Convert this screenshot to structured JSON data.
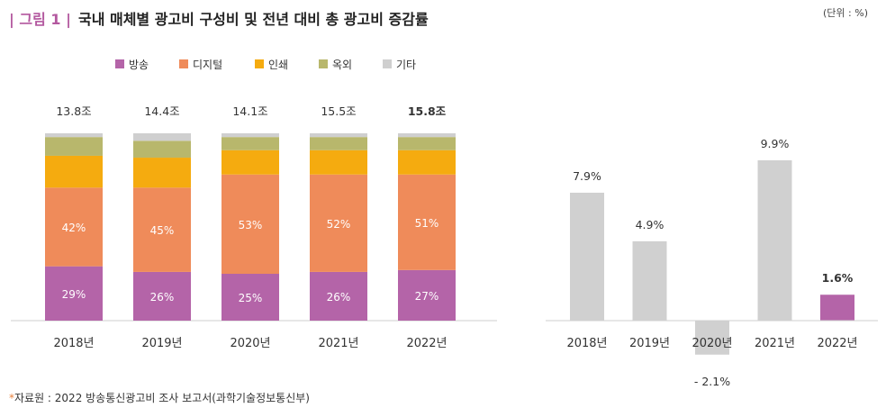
{
  "header": {
    "prefix": "| 그림 1 |",
    "title": "국내 매체별 광고비 구성비 및 전년 대비 총 광고비 증감률",
    "unit": "(단위 : %)"
  },
  "source": {
    "star": "*",
    "text": "자료원 : 2022 방송통신광고비 조사 보고서(과학기술정보통신부)"
  },
  "chart_data": [
    {
      "type": "bar",
      "stacked": true,
      "categories": [
        "2018년",
        "2019년",
        "2020년",
        "2021년",
        "2022년"
      ],
      "totals": [
        "13.8조",
        "14.4조",
        "14.1조",
        "15.5조",
        "15.8조"
      ],
      "highlight_total_index": 4,
      "series": [
        {
          "name": "방송",
          "color": "#b464a8",
          "values": [
            29,
            26,
            25,
            26,
            27
          ],
          "labels": [
            "29%",
            "26%",
            "25%",
            "26%",
            "27%"
          ]
        },
        {
          "name": "디지털",
          "color": "#ef8b5a",
          "values": [
            42,
            45,
            53,
            52,
            51
          ],
          "labels": [
            "42%",
            "45%",
            "53%",
            "52%",
            "51%"
          ]
        },
        {
          "name": "인쇄",
          "color": "#f5ab0f",
          "values": [
            17,
            16,
            13,
            13,
            13
          ]
        },
        {
          "name": "옥외",
          "color": "#b8b76c",
          "values": [
            10,
            9,
            7,
            7,
            7
          ]
        },
        {
          "name": "기타",
          "color": "#cfcfcf",
          "values": [
            2,
            4,
            2,
            2,
            2
          ]
        }
      ],
      "legend": "top-left",
      "ylim": [
        0,
        100
      ]
    },
    {
      "type": "bar",
      "categories": [
        "2018년",
        "2019년",
        "2020년",
        "2021년",
        "2022년"
      ],
      "values": [
        7.9,
        4.9,
        -2.1,
        9.9,
        1.6
      ],
      "labels": [
        "7.9%",
        "4.9%",
        "- 2.1%",
        "9.9%",
        "1.6%"
      ],
      "colors": [
        "#d0d0d0",
        "#d0d0d0",
        "#d0d0d0",
        "#d0d0d0",
        "#b464a8"
      ],
      "highlight_index": 4,
      "ylim": [
        -3,
        11
      ]
    }
  ]
}
